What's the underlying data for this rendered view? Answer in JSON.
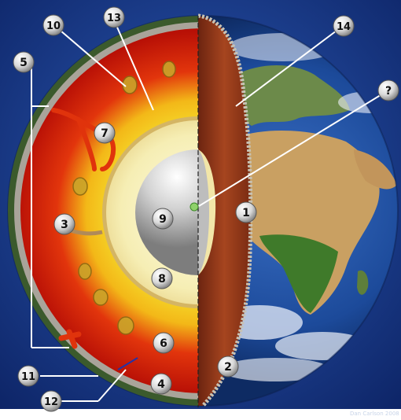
{
  "diagram": {
    "labels": [
      {
        "id": "label-1",
        "text": "1"
      },
      {
        "id": "label-2",
        "text": "2"
      },
      {
        "id": "label-3",
        "text": "3"
      },
      {
        "id": "label-4",
        "text": "4"
      },
      {
        "id": "label-5",
        "text": "5"
      },
      {
        "id": "label-6",
        "text": "6"
      },
      {
        "id": "label-7",
        "text": "7"
      },
      {
        "id": "label-8",
        "text": "8"
      },
      {
        "id": "label-9",
        "text": "9"
      },
      {
        "id": "label-10",
        "text": "10"
      },
      {
        "id": "label-11",
        "text": "11"
      },
      {
        "id": "label-12",
        "text": "12"
      },
      {
        "id": "label-13",
        "text": "13"
      },
      {
        "id": "label-14",
        "text": "14"
      },
      {
        "id": "label-question",
        "text": "?"
      }
    ],
    "credit": "Dan Carlson 2008",
    "colors": {
      "space": "#1b3f8f",
      "mantle_outer": "#d81f0c",
      "mantle_inner": "#f4e21f",
      "outer_core": "#f7f3c6",
      "inner_core": "#c9c9c9",
      "crust": "#8e3417",
      "ocean": "#1c4a9a",
      "land": "#c9a062",
      "vegetation": "#3f7a2a"
    }
  }
}
